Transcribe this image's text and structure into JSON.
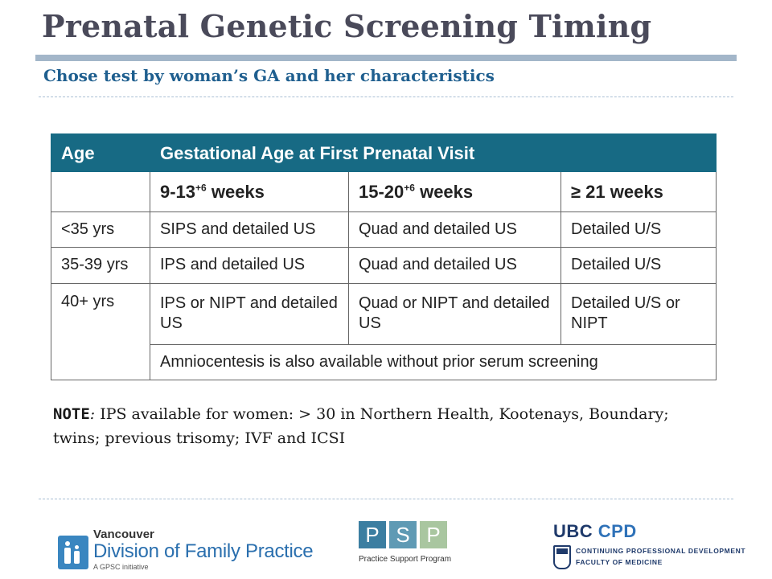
{
  "slide": {
    "title": "Prenatal Genetic Screening Timing",
    "subtitle": "Chose test by woman’s GA and her characteristics"
  },
  "table": {
    "header": {
      "age": "Age",
      "ga": "Gestational Age at First Prenatal Visit"
    },
    "weeks": [
      {
        "base": "9-13",
        "sup": "+6",
        "rest": " weeks"
      },
      {
        "base": "15-20",
        "sup": "+6",
        "rest": " weeks"
      },
      {
        "base": "≥ 21 weeks",
        "sup": "",
        "rest": ""
      }
    ],
    "rows": [
      {
        "age": "<35 yrs",
        "c1": "SIPS and detailed US",
        "c2": "Quad and detailed US",
        "c3": "Detailed U/S"
      },
      {
        "age": "35-39 yrs",
        "c1": "IPS and detailed US",
        "c2": "Quad and detailed US",
        "c3": "Detailed U/S"
      },
      {
        "age": "40+ yrs",
        "c1": "IPS or NIPT and detailed US",
        "c2": "Quad or NIPT and detailed US",
        "c3": "Detailed U/S or NIPT"
      }
    ],
    "footnote": "Amniocentesis is also available without prior serum screening"
  },
  "note": {
    "label": "NOTE",
    "colon": ":",
    "text": " IPS available for women: > 30 in Northern Health, Kootenays, Boundary; twins; previous trisomy; IVF and ICSI"
  },
  "logos": {
    "vdfp": {
      "top": "Vancouver",
      "main": "Division of Family Practice",
      "tag": "A GPSC initiative"
    },
    "psp": {
      "letters": [
        "P",
        "S",
        "P"
      ],
      "colors": [
        "#3b7ea1",
        "#5f9ab4",
        "#a9c6a0"
      ],
      "caption": "Practice Support Program"
    },
    "ubc": {
      "ubc": "UBC",
      "cpd": "CPD",
      "line1": "CONTINUING PROFESSIONAL DEVELOPMENT",
      "line2": "FACULTY OF MEDICINE"
    }
  }
}
